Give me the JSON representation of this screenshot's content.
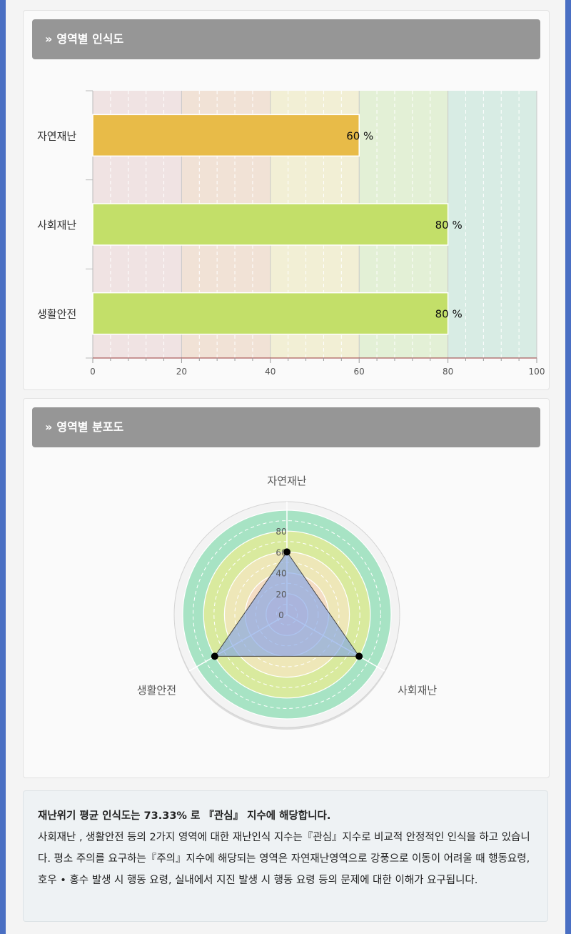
{
  "cards": {
    "bar_title": "영역별 인식도",
    "radar_title": "영역별 분포도",
    "chevron": "»"
  },
  "colors": {
    "header_bg": "#969696",
    "bar_yellow": "#e8bb48",
    "bar_green": "#c3df69",
    "band_red": "#f0e3e3",
    "band_orange": "#f1e2d6",
    "band_yellow": "#f2efd5",
    "band_lightgreen": "#e3f0d6",
    "band_teal": "#d8ece4"
  },
  "chart_data": [
    {
      "type": "bar",
      "orientation": "horizontal",
      "categories": [
        "자연재난",
        "사회재난",
        "생활안전"
      ],
      "values": [
        60,
        80,
        80
      ],
      "value_suffix": " %",
      "bar_colors": [
        "#e8bb48",
        "#c3df69",
        "#c3df69"
      ],
      "xlim": [
        0,
        100
      ],
      "xticks": [
        0,
        20,
        40,
        60,
        80,
        100
      ]
    },
    {
      "type": "radar",
      "axes": [
        "자연재난",
        "사회재난",
        "생활안전"
      ],
      "values": [
        60,
        80,
        80
      ],
      "rlim": [
        0,
        100
      ],
      "rticks": [
        0,
        20,
        40,
        60,
        80
      ]
    }
  ],
  "summary": {
    "headline": "재난위기 평균 인식도는 73.33% 로 『관심』 지수에 해당합니다.",
    "body": "사회재난 , 생활안전 등의 2가지 영역에 대한 재난인식 지수는『관심』지수로 비교적 안정적인 인식을 하고 있습니다. 평소 주의를 요구하는『주의』지수에 해당되는 영역은 자연재난영역으로 강풍으로 이동이 어려울 때 행동요령, 호우 • 홍수 발생 시 행동 요령, 실내에서 지진 발생 시 행동 요령 등의 문제에 대한 이해가 요구됩니다."
  }
}
